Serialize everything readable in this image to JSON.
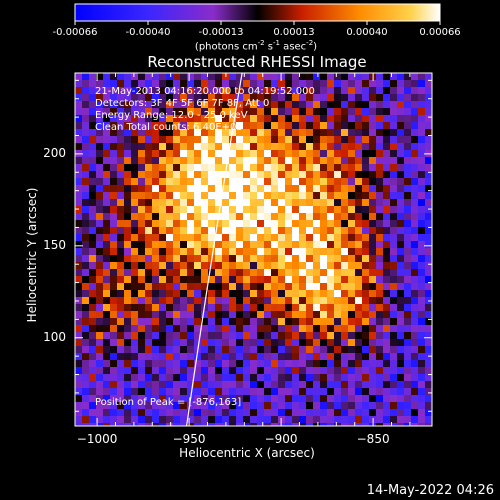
{
  "colorbar": {
    "ticks": [
      "-0.00066",
      "-0.00040",
      "-0.00013",
      "0.00013",
      "0.00040",
      "0.00066"
    ],
    "unit_prefix": "(photons cm",
    "unit_exp1": "-2",
    "unit_mid1": " s",
    "unit_exp2": "-1",
    "unit_mid2": " asec",
    "unit_exp3": "-2",
    "unit_suffix": ")"
  },
  "chart_data": {
    "type": "heatmap",
    "title": "Reconstructed RHESSI Image",
    "xlabel": "Heliocentric X (arcsec)",
    "ylabel": "Heliocentric Y (arcsec)",
    "xlim": [
      -1012,
      -818
    ],
    "ylim": [
      52,
      244
    ],
    "xticks": [
      -1000,
      -950,
      -900,
      -850
    ],
    "yticks": [
      100,
      150,
      200
    ],
    "clim": [
      -0.00066,
      0.00066
    ],
    "peak": [
      -876,
      163
    ],
    "info_lines": [
      "21-May-2013 04:16:20.000 to 04:19:52.000",
      "Detectors: 3F 4F 5F 6F 7F 8F, Att 0",
      "Energy Range: 12.0 - 25.0 keV",
      "Clean      Total counts: 6.40E+03"
    ],
    "peak_label": "Position of Peak = [-876,163]"
  },
  "footer": {
    "timestamp": "14-May-2022 04:26"
  }
}
